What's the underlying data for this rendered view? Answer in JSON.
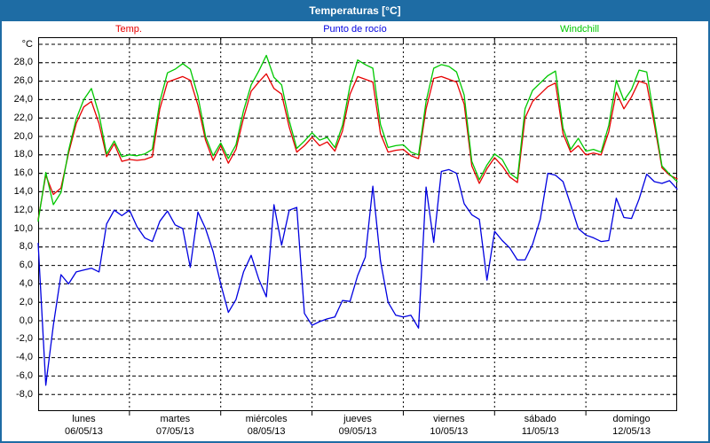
{
  "window": {
    "title": "Temperaturas [°C]",
    "titlebar_color": "#1E6CA4",
    "border_color": "#1E6CA4"
  },
  "legend": [
    {
      "label": "Temp.",
      "color": "#E60000"
    },
    {
      "label": "Punto de rocío",
      "color": "#0000E0"
    },
    {
      "label": "Windchill",
      "color": "#00C800"
    }
  ],
  "chart_data": {
    "type": "line",
    "title": "Temperaturas [°C]",
    "ylabel": "°C",
    "grid": true,
    "legend_position": "top",
    "ylim": [
      -9.8,
      30.8
    ],
    "y_gridline_values": [
      30,
      28,
      26,
      24,
      22,
      20,
      18,
      16,
      14,
      12,
      10,
      8,
      6,
      4,
      2,
      0,
      -2,
      -4,
      -6,
      -8
    ],
    "y_tick_labels": [
      "°C",
      "28,0",
      "26,0",
      "24,0",
      "22,0",
      "20,0",
      "18,0",
      "16,0",
      "14,0",
      "12,0",
      "10,0",
      "8,0",
      "6,0",
      "4,0",
      "2,0",
      "0,0",
      "-2,0",
      "-4,0",
      "-6,0",
      "-8,0"
    ],
    "x_total_hours": 168,
    "x_sample_step_hours": 2,
    "x_day_boundary_hours": [
      24,
      48,
      72,
      96,
      120,
      144
    ],
    "x_days": [
      {
        "name": "lunes",
        "date": "06/05/13"
      },
      {
        "name": "martes",
        "date": "07/05/13"
      },
      {
        "name": "miércoles",
        "date": "08/05/13"
      },
      {
        "name": "jueves",
        "date": "09/05/13"
      },
      {
        "name": "viernes",
        "date": "10/05/13"
      },
      {
        "name": "sábado",
        "date": "11/05/13"
      },
      {
        "name": "domingo",
        "date": "12/05/13"
      }
    ],
    "series": [
      {
        "name": "Temp.",
        "color": "#E60000",
        "values": [
          11.0,
          15.8,
          13.7,
          14.4,
          18.2,
          21.4,
          23.2,
          23.8,
          21.4,
          17.8,
          19.2,
          17.3,
          17.5,
          17.4,
          17.5,
          17.8,
          23.0,
          25.9,
          26.2,
          26.5,
          26.1,
          23.4,
          19.6,
          17.4,
          19.0,
          17.1,
          18.6,
          22.0,
          24.9,
          25.9,
          26.8,
          25.2,
          24.6,
          21.0,
          18.3,
          19.0,
          19.9,
          19.0,
          19.4,
          18.4,
          20.6,
          24.6,
          26.5,
          26.2,
          25.9,
          20.3,
          18.3,
          18.5,
          18.6,
          17.9,
          17.6,
          23.0,
          26.3,
          26.5,
          26.2,
          25.9,
          23.5,
          16.8,
          14.9,
          16.5,
          17.7,
          16.8,
          15.6,
          15.0,
          22.0,
          23.8,
          24.6,
          25.4,
          25.8,
          20.3,
          18.3,
          19.0,
          18.0,
          18.2,
          18.0,
          20.5,
          24.8,
          23.0,
          24.3,
          26.0,
          25.7,
          21.3,
          16.6,
          15.8,
          15.4
        ]
      },
      {
        "name": "Punto de rocío",
        "color": "#0000E0",
        "values": [
          8.4,
          -7.0,
          -0.5,
          5.0,
          4.0,
          5.3,
          5.5,
          5.7,
          5.3,
          10.5,
          12.0,
          11.4,
          12.0,
          10.2,
          9.0,
          8.6,
          10.8,
          11.9,
          10.4,
          10.0,
          5.8,
          11.8,
          10.0,
          7.5,
          4.0,
          0.9,
          2.3,
          5.3,
          7.1,
          4.5,
          2.6,
          12.6,
          8.2,
          12.0,
          12.3,
          0.8,
          -0.5,
          -0.1,
          0.2,
          0.4,
          2.2,
          2.1,
          4.9,
          6.9,
          14.6,
          6.5,
          2.0,
          0.6,
          0.4,
          0.6,
          -0.8,
          14.5,
          8.5,
          16.2,
          16.4,
          16.0,
          12.7,
          11.5,
          11.0,
          4.4,
          9.7,
          8.7,
          7.9,
          6.6,
          6.6,
          8.3,
          11.0,
          16.0,
          15.8,
          15.1,
          12.6,
          10.0,
          9.3,
          9.0,
          8.6,
          8.7,
          13.3,
          11.2,
          11.1,
          13.2,
          15.9,
          15.1,
          14.9,
          15.2,
          14.3
        ]
      },
      {
        "name": "Windchill",
        "color": "#00C800",
        "values": [
          10.8,
          16.1,
          12.6,
          13.9,
          18.5,
          21.9,
          24.0,
          25.2,
          22.4,
          18.1,
          19.5,
          17.8,
          18.0,
          17.9,
          18.1,
          18.6,
          23.8,
          26.9,
          27.3,
          27.9,
          27.3,
          24.4,
          20.0,
          17.9,
          19.3,
          17.6,
          19.1,
          22.8,
          25.6,
          27.1,
          28.8,
          26.4,
          25.6,
          21.7,
          18.7,
          19.5,
          20.4,
          19.6,
          19.9,
          18.8,
          21.2,
          25.5,
          28.3,
          27.8,
          27.4,
          21.3,
          18.8,
          19.0,
          19.1,
          18.3,
          18.0,
          23.8,
          27.4,
          27.8,
          27.6,
          27.0,
          24.5,
          17.3,
          15.3,
          16.9,
          18.1,
          17.5,
          16.0,
          15.4,
          23.0,
          25.0,
          25.8,
          26.6,
          27.1,
          20.9,
          18.6,
          19.8,
          18.4,
          18.6,
          18.3,
          21.2,
          26.1,
          23.9,
          25.1,
          27.2,
          27.0,
          21.9,
          16.8,
          15.9,
          15.1
        ]
      }
    ]
  }
}
